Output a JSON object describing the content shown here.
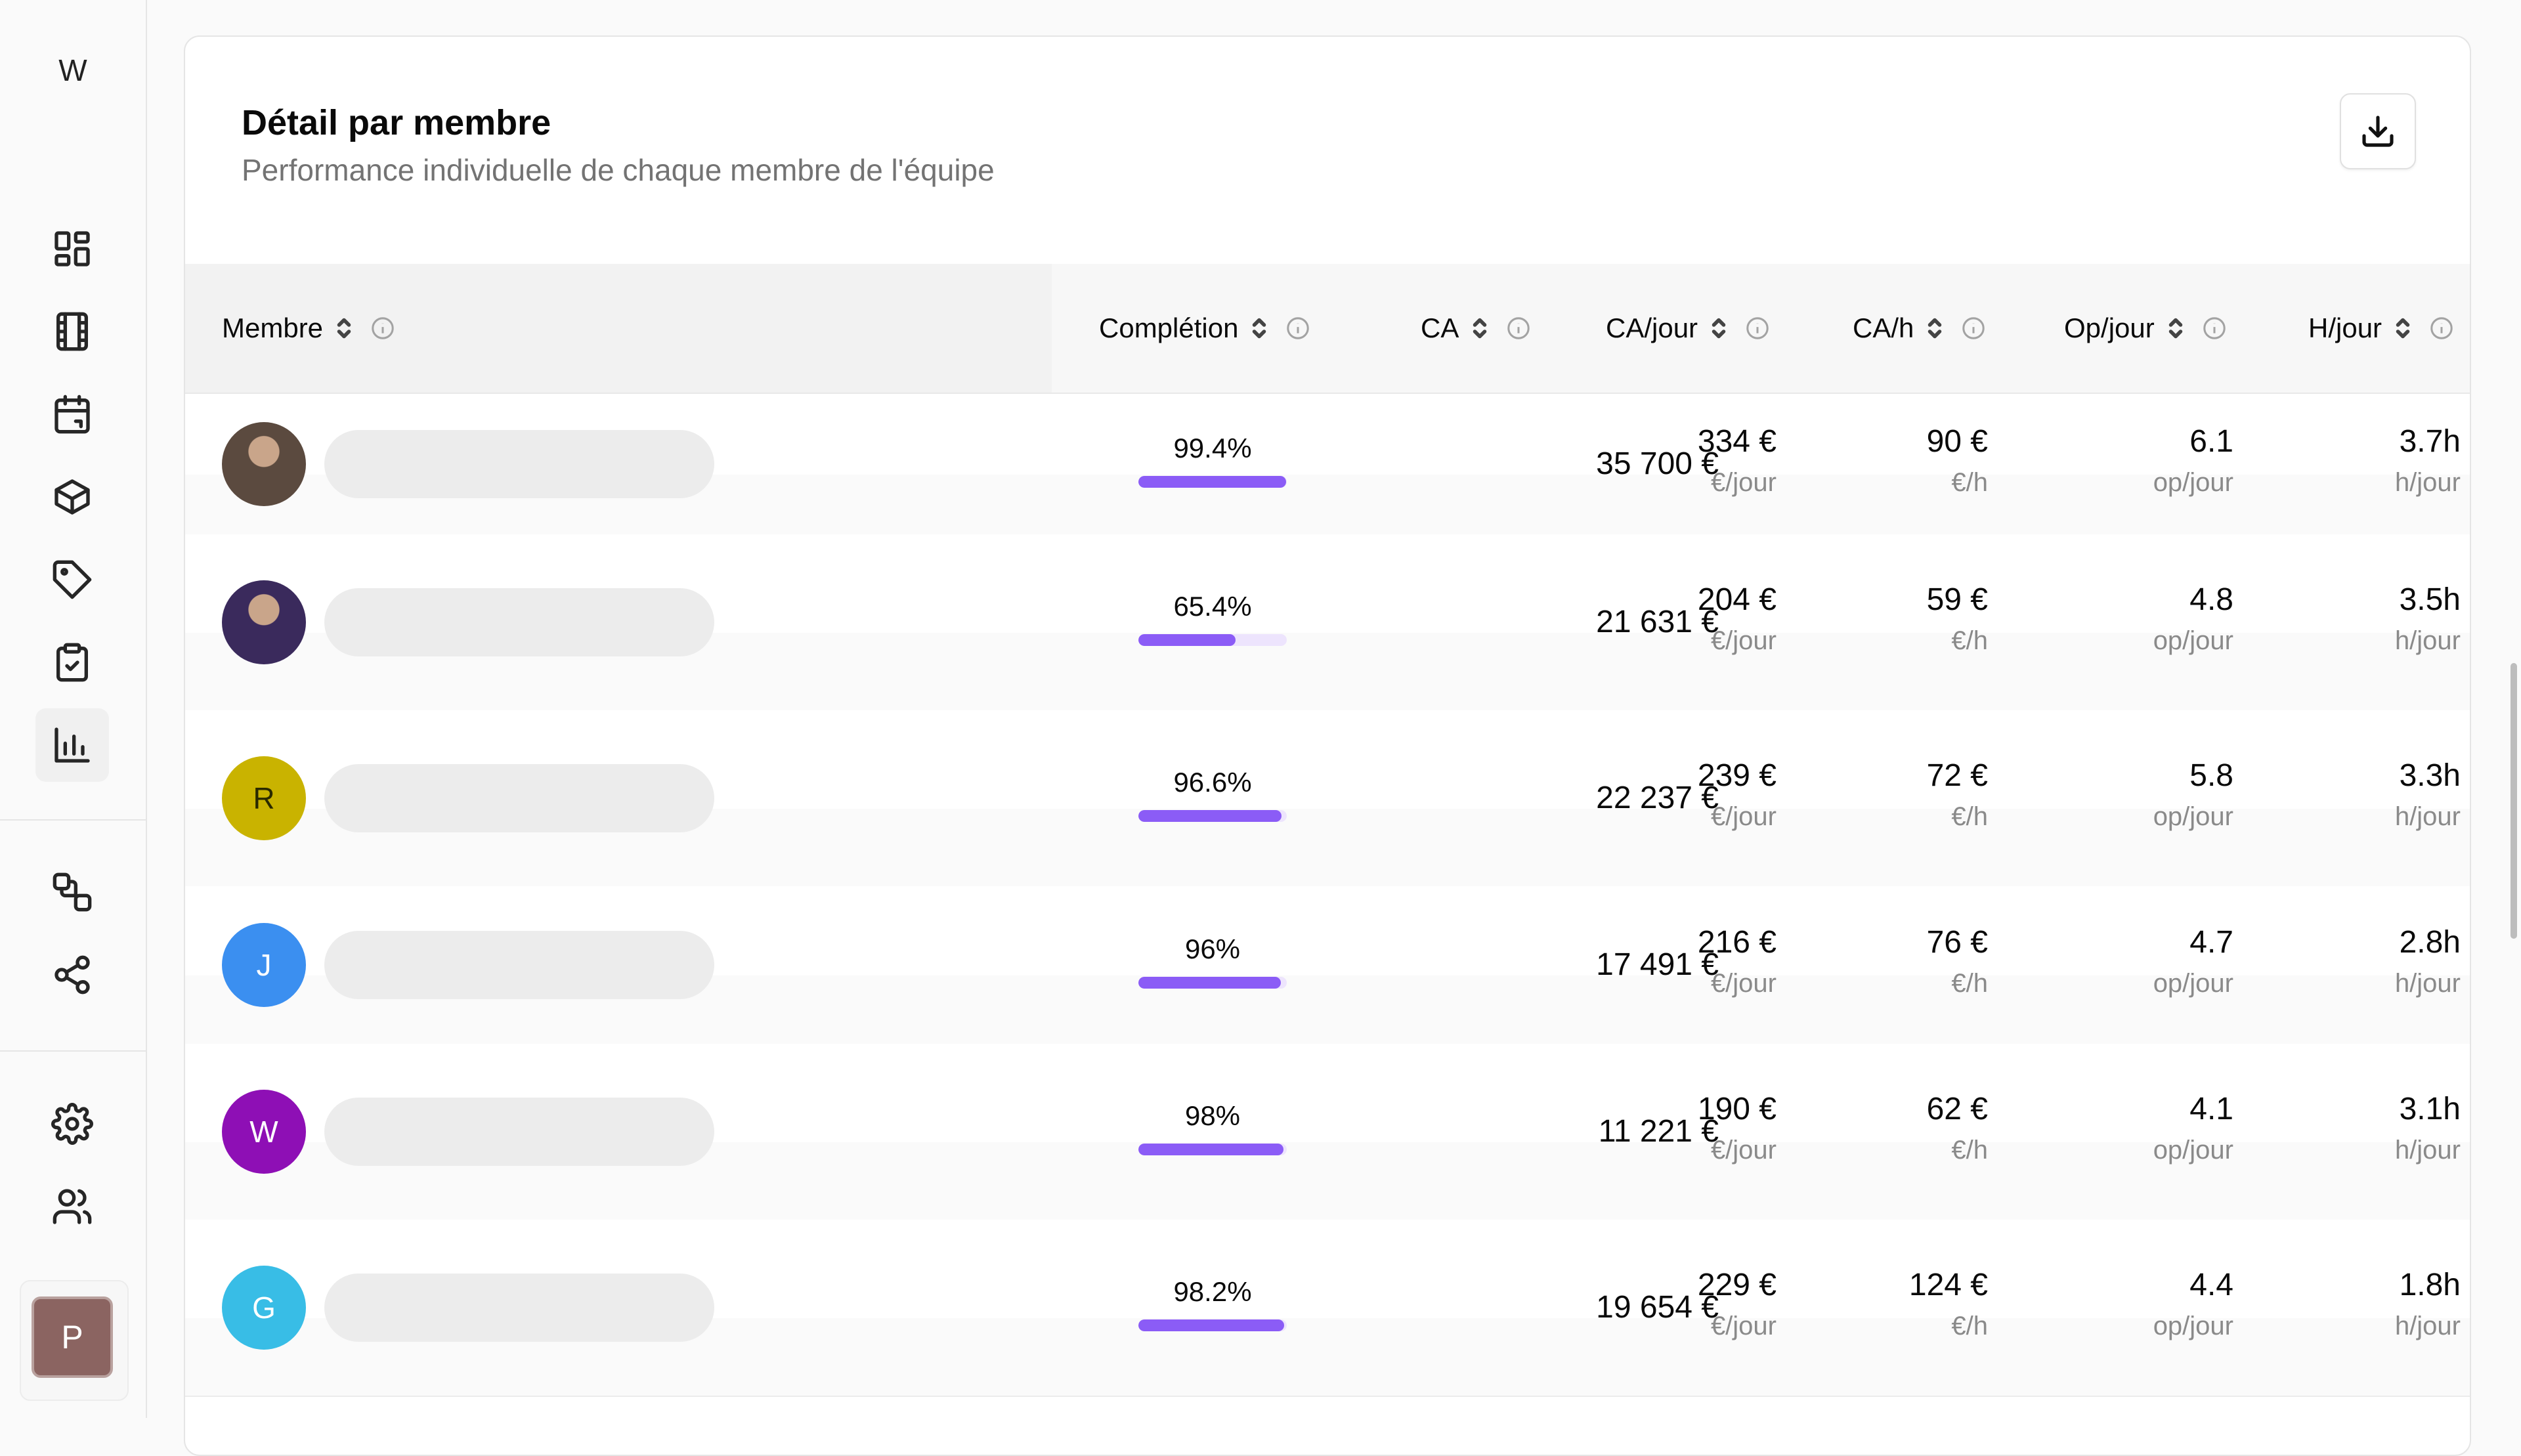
{
  "sidebar": {
    "brand": "W",
    "nav": [
      {
        "icon": "dashboard-icon"
      },
      {
        "icon": "film-icon"
      },
      {
        "icon": "calendar-icon"
      },
      {
        "icon": "box-icon"
      },
      {
        "icon": "tag-icon"
      },
      {
        "icon": "clipboard-check-icon"
      },
      {
        "icon": "bar-chart-icon",
        "active": true
      },
      {
        "icon": "squares-link-icon"
      },
      {
        "icon": "share-icon"
      },
      {
        "icon": "settings-icon"
      },
      {
        "icon": "users-icon"
      }
    ],
    "user_initial": "P"
  },
  "card": {
    "title": "Détail par membre",
    "subtitle": "Performance individuelle de chaque membre de l'équipe",
    "download_icon": "download-icon"
  },
  "table": {
    "columns": {
      "member": "Membre",
      "completion": "Complétion",
      "ca": "CA",
      "ca_day": "CA/jour",
      "ca_hour": "CA/h",
      "op_day": "Op/jour",
      "h_day": "H/jour"
    },
    "units": {
      "ca_day": "€/jour",
      "ca_hour": "€/h",
      "op_day": "op/jour",
      "h_day": "h/jour"
    },
    "rows": [
      {
        "avatar": {
          "type": "photo",
          "color": "#5b4a3f"
        },
        "completion": "99.4%",
        "completion_value": 0.994,
        "ca": "35 700 €",
        "ca_day": "334 €",
        "ca_hour": "90 €",
        "op_day": "6.1",
        "h_day": "3.7h"
      },
      {
        "avatar": {
          "type": "photo",
          "color": "#3a2a5c"
        },
        "completion": "65.4%",
        "completion_value": 0.654,
        "ca": "21 631 €",
        "ca_day": "204 €",
        "ca_hour": "59 €",
        "op_day": "4.8",
        "h_day": "3.5h"
      },
      {
        "avatar": {
          "type": "initial",
          "initial": "R",
          "color": "#c9b300",
          "text_color": "#2a2a00"
        },
        "completion": "96.6%",
        "completion_value": 0.966,
        "ca": "22 237 €",
        "ca_day": "239 €",
        "ca_hour": "72 €",
        "op_day": "5.8",
        "h_day": "3.3h"
      },
      {
        "avatar": {
          "type": "initial",
          "initial": "J",
          "color": "#3b8ff0",
          "text_color": "#ffffff"
        },
        "completion": "96%",
        "completion_value": 0.96,
        "ca": "17 491 €",
        "ca_day": "216 €",
        "ca_hour": "76 €",
        "op_day": "4.7",
        "h_day": "2.8h"
      },
      {
        "avatar": {
          "type": "initial",
          "initial": "W",
          "color": "#8e0fb5",
          "text_color": "#ffffff"
        },
        "completion": "98%",
        "completion_value": 0.98,
        "ca": "11 221 €",
        "ca_day": "190 €",
        "ca_hour": "62 €",
        "op_day": "4.1",
        "h_day": "3.1h"
      },
      {
        "avatar": {
          "type": "initial",
          "initial": "G",
          "color": "#38bde6",
          "text_color": "#ffffff"
        },
        "completion": "98.2%",
        "completion_value": 0.982,
        "ca": "19 654 €",
        "ca_day": "229 €",
        "ca_hour": "124 €",
        "op_day": "4.4",
        "h_day": "1.8h"
      }
    ]
  },
  "colors": {
    "accent": "#8b5cf6",
    "accent_track": "#ede4fd"
  }
}
